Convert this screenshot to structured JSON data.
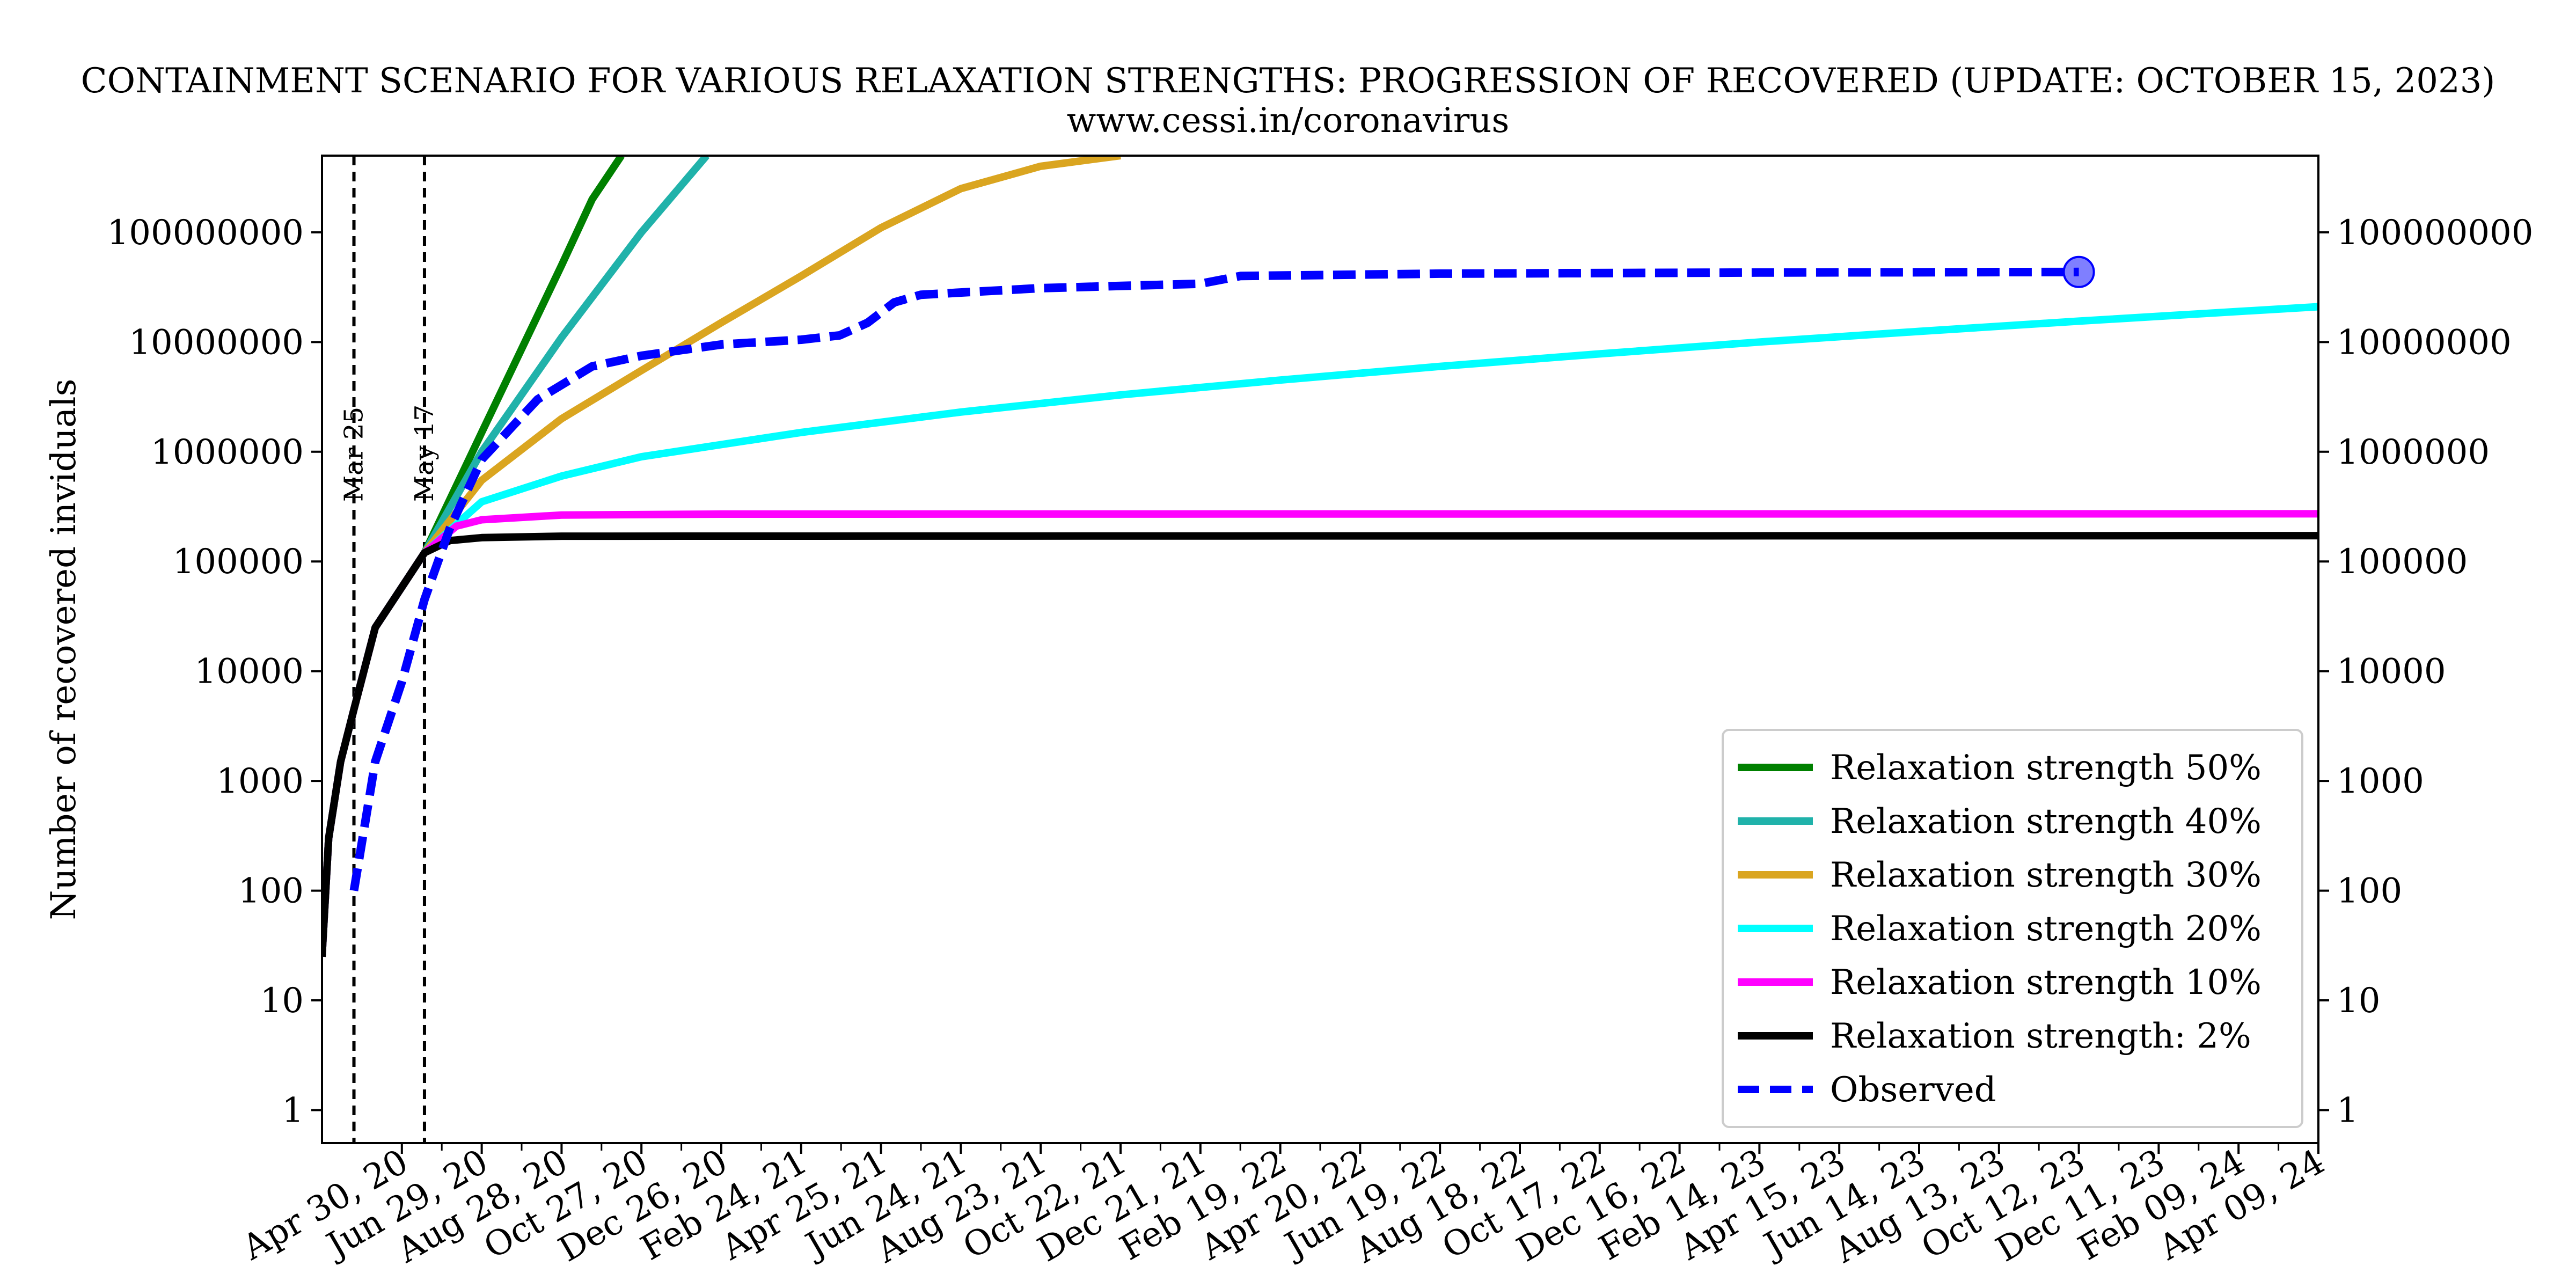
{
  "chart_data": {
    "type": "line",
    "title": "CONTAINMENT SCENARIO FOR VARIOUS RELAXATION STRENGTHS: PROGRESSION OF RECOVERED (UPDATE: OCTOBER 15, 2023)",
    "subtitle": "www.cessi.in/coronavirus",
    "ylabel": "Number of recovered inviduals",
    "xlabel": "",
    "yscale": "log",
    "ylim": [
      0.5,
      500000000
    ],
    "xlim": [
      "2020-03-01",
      "2024-04-09"
    ],
    "secondary_y_axis": true,
    "grid": false,
    "legend_position": "lower-right",
    "x_ticks": [
      "Apr 30, 20",
      "Jun 29, 20",
      "Aug 28, 20",
      "Oct 27, 20",
      "Dec 26, 20",
      "Feb 24, 21",
      "Apr 25, 21",
      "Jun 24, 21",
      "Aug 23, 21",
      "Oct 22, 21",
      "Dec 21, 21",
      "Feb 19, 22",
      "Apr 20, 22",
      "Jun 19, 22",
      "Aug 18, 22",
      "Oct 17, 22",
      "Dec 16, 22",
      "Feb 14, 23",
      "Apr 15, 23",
      "Jun 14, 23",
      "Aug 13, 23",
      "Oct 12, 23",
      "Dec 11, 23",
      "Feb 09, 24",
      "Apr 09, 24"
    ],
    "x_tick_dates": [
      "2020-04-30",
      "2020-06-29",
      "2020-08-28",
      "2020-10-27",
      "2020-12-26",
      "2021-02-24",
      "2021-04-25",
      "2021-06-24",
      "2021-08-23",
      "2021-10-22",
      "2021-12-21",
      "2022-02-19",
      "2022-04-20",
      "2022-06-19",
      "2022-08-18",
      "2022-10-17",
      "2022-12-16",
      "2023-02-14",
      "2023-04-15",
      "2023-06-14",
      "2023-08-13",
      "2023-10-12",
      "2023-12-11",
      "2024-02-09",
      "2024-04-09"
    ],
    "y_ticks": [
      "1",
      "10",
      "100",
      "1000",
      "10000",
      "100000",
      "1000000",
      "10000000",
      "100000000"
    ],
    "y_tick_values": [
      1,
      10,
      100,
      1000,
      10000,
      100000,
      1000000,
      10000000,
      100000000
    ],
    "vertical_lines": [
      {
        "date": "2020-03-25",
        "label": "Mar 25"
      },
      {
        "date": "2020-05-17",
        "label": "May 17"
      }
    ],
    "series": [
      {
        "name": "Relaxation strength 50%",
        "color": "#008000",
        "style": "solid",
        "points": [
          [
            "2020-03-01",
            25
          ],
          [
            "2020-03-06",
            300
          ],
          [
            "2020-03-15",
            1500
          ],
          [
            "2020-03-25",
            4500
          ],
          [
            "2020-04-10",
            25000
          ],
          [
            "2020-05-17",
            120000
          ],
          [
            "2020-06-29",
            1500000
          ],
          [
            "2020-08-28",
            50000000
          ],
          [
            "2020-09-20",
            200000000
          ],
          [
            "2020-10-12",
            500000000
          ]
        ]
      },
      {
        "name": "Relaxation strength 40%",
        "color": "#20b2aa",
        "style": "solid",
        "points": [
          [
            "2020-03-01",
            25
          ],
          [
            "2020-03-06",
            300
          ],
          [
            "2020-03-15",
            1500
          ],
          [
            "2020-03-25",
            4500
          ],
          [
            "2020-04-10",
            25000
          ],
          [
            "2020-05-17",
            120000
          ],
          [
            "2020-06-29",
            1000000
          ],
          [
            "2020-08-28",
            11000000
          ],
          [
            "2020-10-27",
            100000000
          ],
          [
            "2020-12-15",
            500000000
          ]
        ]
      },
      {
        "name": "Relaxation strength 30%",
        "color": "#daa520",
        "style": "solid",
        "points": [
          [
            "2020-03-01",
            25
          ],
          [
            "2020-03-06",
            300
          ],
          [
            "2020-03-15",
            1500
          ],
          [
            "2020-03-25",
            4500
          ],
          [
            "2020-04-10",
            25000
          ],
          [
            "2020-05-17",
            120000
          ],
          [
            "2020-06-29",
            550000
          ],
          [
            "2020-08-28",
            2000000
          ],
          [
            "2020-10-27",
            5500000
          ],
          [
            "2020-12-26",
            15000000
          ],
          [
            "2021-02-24",
            40000000
          ],
          [
            "2021-04-25",
            110000000
          ],
          [
            "2021-06-24",
            250000000
          ],
          [
            "2021-08-23",
            400000000
          ],
          [
            "2021-10-22",
            500000000
          ]
        ]
      },
      {
        "name": "Relaxation strength 20%",
        "color": "#00ffff",
        "style": "solid",
        "points": [
          [
            "2020-03-01",
            25
          ],
          [
            "2020-03-06",
            300
          ],
          [
            "2020-03-15",
            1500
          ],
          [
            "2020-03-25",
            4500
          ],
          [
            "2020-04-10",
            25000
          ],
          [
            "2020-05-17",
            120000
          ],
          [
            "2020-06-29",
            350000
          ],
          [
            "2020-08-28",
            600000
          ],
          [
            "2020-10-27",
            900000
          ],
          [
            "2021-02-24",
            1500000
          ],
          [
            "2021-06-24",
            2300000
          ],
          [
            "2021-10-22",
            3300000
          ],
          [
            "2022-02-19",
            4500000
          ],
          [
            "2022-06-19",
            6000000
          ],
          [
            "2022-10-17",
            7800000
          ],
          [
            "2023-02-14",
            10000000
          ],
          [
            "2023-06-14",
            12500000
          ],
          [
            "2023-10-12",
            15500000
          ],
          [
            "2024-02-09",
            19000000
          ],
          [
            "2024-04-09",
            21000000
          ]
        ]
      },
      {
        "name": "Relaxation strength 10%",
        "color": "#ff00ff",
        "style": "solid",
        "points": [
          [
            "2020-03-01",
            25
          ],
          [
            "2020-03-06",
            300
          ],
          [
            "2020-03-15",
            1500
          ],
          [
            "2020-03-25",
            4500
          ],
          [
            "2020-04-10",
            25000
          ],
          [
            "2020-05-17",
            120000
          ],
          [
            "2020-06-10",
            210000
          ],
          [
            "2020-06-29",
            240000
          ],
          [
            "2020-08-28",
            265000
          ],
          [
            "2020-12-26",
            270000
          ],
          [
            "2024-04-09",
            272000
          ]
        ]
      },
      {
        "name": "Relaxation strength: 2%",
        "color": "#000000",
        "style": "solid",
        "points": [
          [
            "2020-03-01",
            25
          ],
          [
            "2020-03-06",
            300
          ],
          [
            "2020-03-15",
            1500
          ],
          [
            "2020-03-25",
            4500
          ],
          [
            "2020-04-10",
            25000
          ],
          [
            "2020-05-17",
            120000
          ],
          [
            "2020-06-05",
            155000
          ],
          [
            "2020-06-29",
            165000
          ],
          [
            "2020-08-28",
            170000
          ],
          [
            "2024-04-09",
            172000
          ]
        ]
      },
      {
        "name": "Observed",
        "color": "#0000ff",
        "style": "dashed",
        "points": [
          [
            "2020-03-25",
            100
          ],
          [
            "2020-04-10",
            1500
          ],
          [
            "2020-04-30",
            8000
          ],
          [
            "2020-05-17",
            45000
          ],
          [
            "2020-06-05",
            200000
          ],
          [
            "2020-06-29",
            850000
          ],
          [
            "2020-08-10",
            3000000
          ],
          [
            "2020-09-20",
            6000000
          ],
          [
            "2020-10-27",
            7500000
          ],
          [
            "2020-12-26",
            9500000
          ],
          [
            "2021-02-24",
            10500000
          ],
          [
            "2021-03-25",
            11500000
          ],
          [
            "2021-04-15",
            15000000
          ],
          [
            "2021-05-05",
            23000000
          ],
          [
            "2021-05-25",
            27000000
          ],
          [
            "2021-08-23",
            31000000
          ],
          [
            "2021-12-21",
            34000000
          ],
          [
            "2022-01-20",
            40000000
          ],
          [
            "2022-06-19",
            42000000
          ],
          [
            "2023-02-14",
            43000000
          ],
          [
            "2023-10-12",
            43500000
          ]
        ],
        "end_marker": true
      }
    ]
  }
}
